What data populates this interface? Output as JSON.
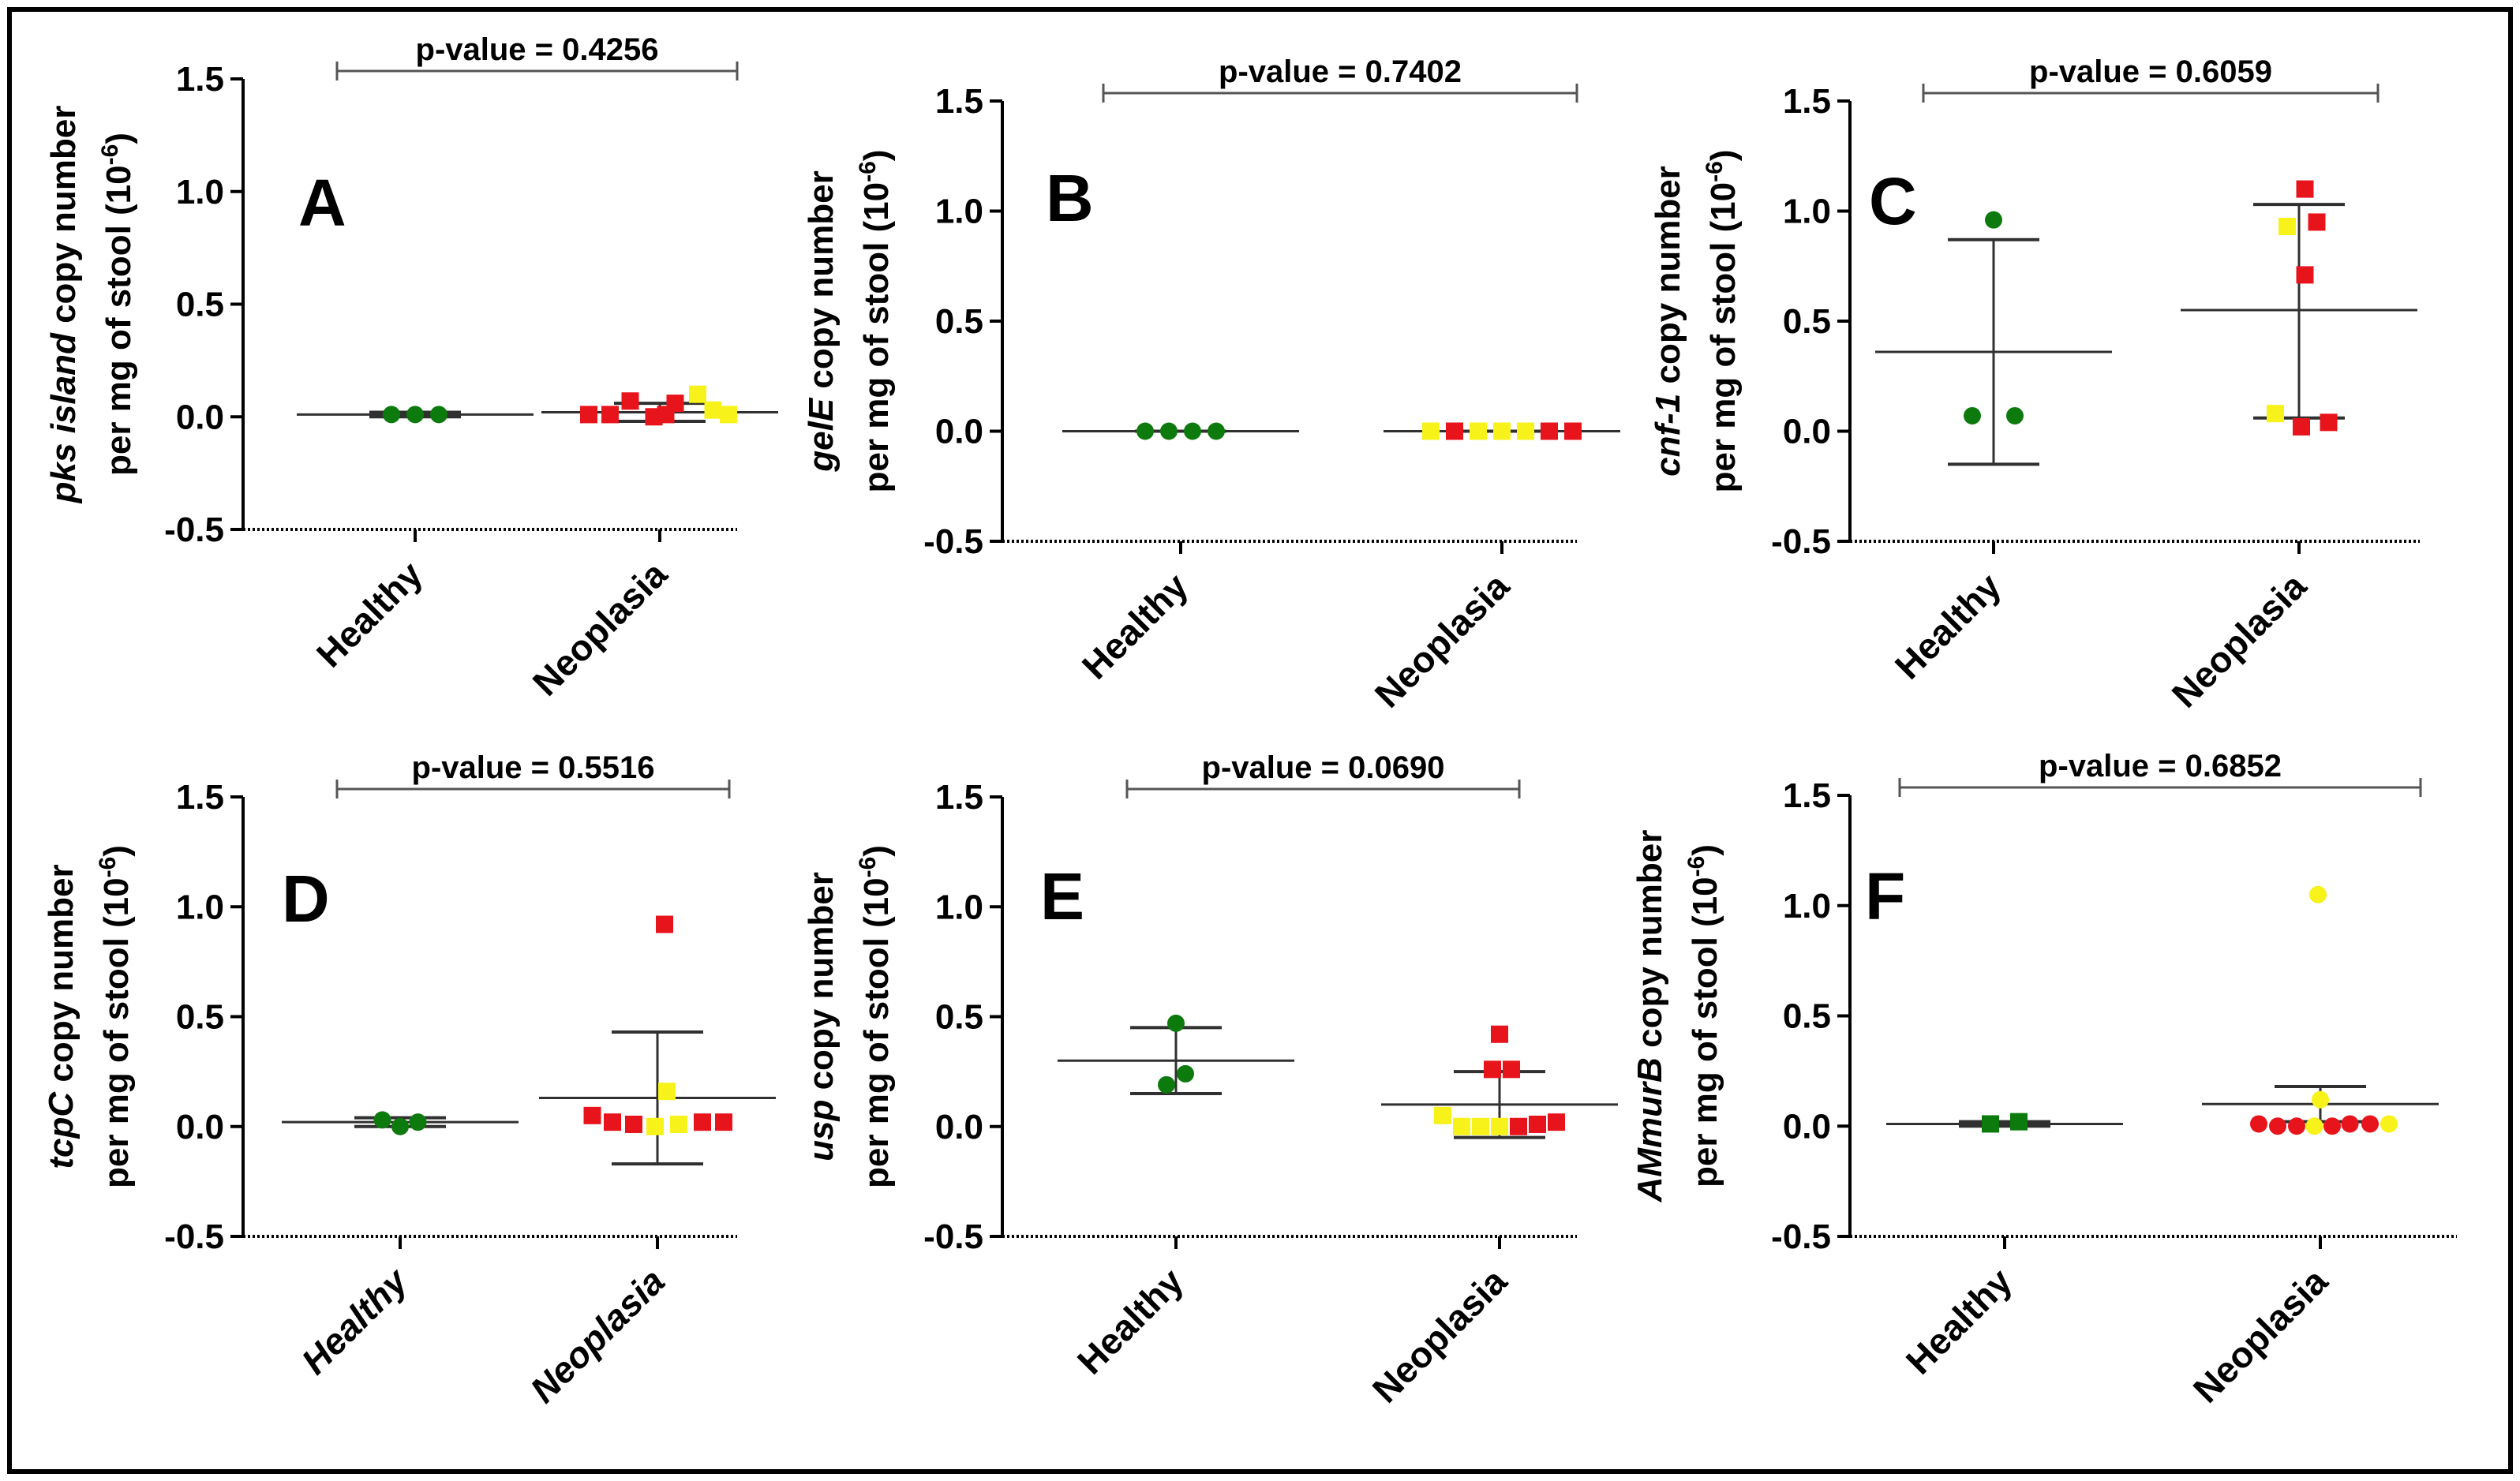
{
  "figure": {
    "border_color": "#000000"
  },
  "colors": {
    "healthy": "#0d7a0d",
    "red": "#e8141c",
    "yellow": "#f7f21a",
    "line": "#303030"
  },
  "chart_data": [
    {
      "type": "scatter",
      "panel_label": "A",
      "ylabel": {
        "line1_italic": "pks island",
        "line1_rest": " copy number",
        "line2": "per mg of stool (10",
        "line2_exp": "-6",
        "line2_end": ")"
      },
      "yticks": [
        "1.5",
        "1.0",
        "0.5",
        "0.0",
        "-0.5"
      ],
      "ylim": [
        -0.5,
        1.5
      ],
      "categories": [
        "Healthy",
        "Neoplasia"
      ],
      "category_italic": false,
      "p_value": "p-value = 0.4256",
      "groups": [
        {
          "name": "Healthy",
          "mean": 0.01,
          "sd_low": 0.0,
          "sd_high": 0.02,
          "points": [
            {
              "dx": -0.2,
              "y": 0.01,
              "color": "healthy",
              "shape": "circle"
            },
            {
              "dx": 0.0,
              "y": 0.01,
              "color": "healthy",
              "shape": "circle"
            },
            {
              "dx": 0.2,
              "y": 0.01,
              "color": "healthy",
              "shape": "circle"
            }
          ]
        },
        {
          "name": "Neoplasia",
          "mean": 0.02,
          "sd_low": -0.02,
          "sd_high": 0.06,
          "points": [
            {
              "dx": -0.6,
              "y": 0.01,
              "color": "red",
              "shape": "square"
            },
            {
              "dx": -0.42,
              "y": 0.01,
              "color": "red",
              "shape": "square"
            },
            {
              "dx": -0.25,
              "y": 0.07,
              "color": "red",
              "shape": "square"
            },
            {
              "dx": -0.05,
              "y": 0.0,
              "color": "red",
              "shape": "square"
            },
            {
              "dx": 0.05,
              "y": 0.01,
              "color": "red",
              "shape": "square"
            },
            {
              "dx": 0.13,
              "y": 0.06,
              "color": "red",
              "shape": "square"
            },
            {
              "dx": 0.32,
              "y": 0.1,
              "color": "yellow",
              "shape": "square"
            },
            {
              "dx": 0.45,
              "y": 0.03,
              "color": "yellow",
              "shape": "square"
            },
            {
              "dx": 0.58,
              "y": 0.01,
              "color": "yellow",
              "shape": "square"
            }
          ]
        }
      ]
    },
    {
      "type": "scatter",
      "panel_label": "B",
      "ylabel": {
        "line1_italic": "gelE",
        "line1_rest": " copy number",
        "line2": "per mg of stool (10",
        "line2_exp": "-6",
        "line2_end": ")"
      },
      "yticks": [
        "1.5",
        "1.0",
        "0.5",
        "0.0",
        "-0.5"
      ],
      "ylim": [
        -0.5,
        1.5
      ],
      "categories": [
        "Healthy",
        "Neoplasia"
      ],
      "category_italic": false,
      "p_value": "p-value = 0.7402",
      "groups": [
        {
          "name": "Healthy",
          "mean": 0.0,
          "sd_low": 0.0,
          "sd_high": 0.0,
          "points": [
            {
              "dx": -0.3,
              "y": 0.0,
              "color": "healthy",
              "shape": "circle"
            },
            {
              "dx": -0.1,
              "y": 0.0,
              "color": "healthy",
              "shape": "circle"
            },
            {
              "dx": 0.1,
              "y": 0.0,
              "color": "healthy",
              "shape": "circle"
            },
            {
              "dx": 0.3,
              "y": 0.0,
              "color": "healthy",
              "shape": "circle"
            }
          ]
        },
        {
          "name": "Neoplasia",
          "mean": 0.0,
          "sd_low": 0.0,
          "sd_high": 0.0,
          "points": [
            {
              "dx": -0.6,
              "y": 0.0,
              "color": "yellow",
              "shape": "square"
            },
            {
              "dx": -0.4,
              "y": 0.0,
              "color": "red",
              "shape": "square"
            },
            {
              "dx": -0.2,
              "y": 0.0,
              "color": "yellow",
              "shape": "square"
            },
            {
              "dx": 0.0,
              "y": 0.0,
              "color": "yellow",
              "shape": "square"
            },
            {
              "dx": 0.2,
              "y": 0.0,
              "color": "yellow",
              "shape": "square"
            },
            {
              "dx": 0.4,
              "y": 0.0,
              "color": "red",
              "shape": "square"
            },
            {
              "dx": 0.6,
              "y": 0.0,
              "color": "red",
              "shape": "square"
            }
          ]
        }
      ]
    },
    {
      "type": "scatter",
      "panel_label": "C",
      "ylabel": {
        "line1_italic": "cnf-1",
        "line1_rest": " copy number",
        "line2": "per mg of stool (10",
        "line2_exp": "-6",
        "line2_end": ")"
      },
      "yticks": [
        "1.5",
        "1.0",
        "0.5",
        "0.0",
        "-0.5"
      ],
      "ylim": [
        -0.5,
        1.5
      ],
      "categories": [
        "Healthy",
        "Neoplasia"
      ],
      "category_italic": false,
      "p_value": "p-value = 0.6059",
      "groups": [
        {
          "name": "Healthy",
          "mean": 0.36,
          "sd_low": -0.15,
          "sd_high": 0.87,
          "points": [
            {
              "dx": 0.0,
              "y": 0.96,
              "color": "healthy",
              "shape": "circle"
            },
            {
              "dx": -0.18,
              "y": 0.07,
              "color": "healthy",
              "shape": "circle"
            },
            {
              "dx": 0.18,
              "y": 0.07,
              "color": "healthy",
              "shape": "circle"
            }
          ]
        },
        {
          "name": "Neoplasia",
          "mean": 0.55,
          "sd_low": 0.06,
          "sd_high": 1.03,
          "points": [
            {
              "dx": 0.05,
              "y": 1.1,
              "color": "red",
              "shape": "square"
            },
            {
              "dx": -0.1,
              "y": 0.93,
              "color": "yellow",
              "shape": "square"
            },
            {
              "dx": 0.15,
              "y": 0.95,
              "color": "red",
              "shape": "square"
            },
            {
              "dx": 0.05,
              "y": 0.71,
              "color": "red",
              "shape": "square"
            },
            {
              "dx": -0.2,
              "y": 0.08,
              "color": "yellow",
              "shape": "square"
            },
            {
              "dx": 0.02,
              "y": 0.02,
              "color": "red",
              "shape": "square"
            },
            {
              "dx": 0.25,
              "y": 0.04,
              "color": "red",
              "shape": "square"
            }
          ]
        }
      ]
    },
    {
      "type": "scatter",
      "panel_label": "D",
      "ylabel": {
        "line1_italic": "tcpC",
        "line1_rest": " copy number",
        "line2": "per mg of stool (10",
        "line2_exp": "-6",
        "line2_end": ")"
      },
      "yticks": [
        "1.5",
        "1.0",
        "0.5",
        "0.0",
        "-0.5"
      ],
      "ylim": [
        -0.5,
        1.5
      ],
      "categories": [
        "Healthy",
        "Neoplasia"
      ],
      "category_italic": true,
      "p_value": "p-value = 0.5516",
      "groups": [
        {
          "name": "Healthy",
          "mean": 0.02,
          "sd_low": 0.0,
          "sd_high": 0.04,
          "points": [
            {
              "dx": -0.15,
              "y": 0.03,
              "color": "healthy",
              "shape": "circle"
            },
            {
              "dx": 0.0,
              "y": 0.0,
              "color": "healthy",
              "shape": "circle"
            },
            {
              "dx": 0.15,
              "y": 0.02,
              "color": "healthy",
              "shape": "circle"
            }
          ]
        },
        {
          "name": "Neoplasia",
          "mean": 0.13,
          "sd_low": -0.17,
          "sd_high": 0.43,
          "points": [
            {
              "dx": 0.06,
              "y": 0.92,
              "color": "red",
              "shape": "square"
            },
            {
              "dx": 0.08,
              "y": 0.16,
              "color": "yellow",
              "shape": "square"
            },
            {
              "dx": -0.55,
              "y": 0.05,
              "color": "red",
              "shape": "square"
            },
            {
              "dx": -0.38,
              "y": 0.02,
              "color": "red",
              "shape": "square"
            },
            {
              "dx": -0.2,
              "y": 0.01,
              "color": "red",
              "shape": "square"
            },
            {
              "dx": -0.02,
              "y": 0.0,
              "color": "yellow",
              "shape": "square"
            },
            {
              "dx": 0.18,
              "y": 0.01,
              "color": "yellow",
              "shape": "square"
            },
            {
              "dx": 0.38,
              "y": 0.02,
              "color": "red",
              "shape": "square"
            },
            {
              "dx": 0.56,
              "y": 0.02,
              "color": "red",
              "shape": "square"
            }
          ]
        }
      ]
    },
    {
      "type": "scatter",
      "panel_label": "E",
      "ylabel": {
        "line1_italic": "usp",
        "line1_rest": " copy number",
        "line2": "per mg of stool (10",
        "line2_exp": "-6",
        "line2_end": ")"
      },
      "yticks": [
        "1.5",
        "1.0",
        "0.5",
        "0.0",
        "-0.5"
      ],
      "ylim": [
        -0.5,
        1.5
      ],
      "categories": [
        "Healthy",
        "Neoplasia"
      ],
      "category_italic": false,
      "p_value": "p-value = 0.0690",
      "groups": [
        {
          "name": "Healthy",
          "mean": 0.3,
          "sd_low": 0.15,
          "sd_high": 0.45,
          "points": [
            {
              "dx": 0.0,
              "y": 0.47,
              "color": "healthy",
              "shape": "circle"
            },
            {
              "dx": 0.08,
              "y": 0.24,
              "color": "healthy",
              "shape": "circle"
            },
            {
              "dx": -0.08,
              "y": 0.19,
              "color": "healthy",
              "shape": "circle"
            }
          ]
        },
        {
          "name": "Neoplasia",
          "mean": 0.1,
          "sd_low": -0.05,
          "sd_high": 0.25,
          "points": [
            {
              "dx": 0.0,
              "y": 0.42,
              "color": "red",
              "shape": "square"
            },
            {
              "dx": -0.06,
              "y": 0.26,
              "color": "red",
              "shape": "square"
            },
            {
              "dx": 0.1,
              "y": 0.26,
              "color": "red",
              "shape": "square"
            },
            {
              "dx": -0.48,
              "y": 0.05,
              "color": "yellow",
              "shape": "square"
            },
            {
              "dx": -0.32,
              "y": 0.0,
              "color": "yellow",
              "shape": "square"
            },
            {
              "dx": -0.16,
              "y": 0.0,
              "color": "yellow",
              "shape": "square"
            },
            {
              "dx": 0.0,
              "y": 0.0,
              "color": "yellow",
              "shape": "square"
            },
            {
              "dx": 0.16,
              "y": 0.0,
              "color": "red",
              "shape": "square"
            },
            {
              "dx": 0.32,
              "y": 0.01,
              "color": "red",
              "shape": "square"
            },
            {
              "dx": 0.48,
              "y": 0.02,
              "color": "red",
              "shape": "square"
            }
          ]
        }
      ]
    },
    {
      "type": "scatter",
      "panel_label": "F",
      "ylabel": {
        "line1_italic": "AMmurB",
        "line1_rest": " copy number",
        "line2": "per mg of stool  (10",
        "line2_exp": "-6",
        "line2_end": ")"
      },
      "yticks": [
        "1.5",
        "1.0",
        "0.5",
        "0.0",
        "-0.5"
      ],
      "ylim": [
        -0.5,
        1.5
      ],
      "categories": [
        "Healthy",
        "Neoplasia"
      ],
      "category_italic": false,
      "p_value": "p-value = 0.6852",
      "groups": [
        {
          "name": "Healthy",
          "mean": 0.01,
          "sd_low": 0.0,
          "sd_high": 0.02,
          "points": [
            {
              "dx": -0.12,
              "y": 0.01,
              "color": "healthy",
              "shape": "square"
            },
            {
              "dx": 0.12,
              "y": 0.02,
              "color": "healthy",
              "shape": "square"
            }
          ]
        },
        {
          "name": "Neoplasia",
          "mean": 0.1,
          "sd_low": 0.02,
          "sd_high": 0.18,
          "points": [
            {
              "dx": -0.02,
              "y": 1.05,
              "color": "yellow",
              "shape": "circle"
            },
            {
              "dx": 0.0,
              "y": 0.12,
              "color": "yellow",
              "shape": "circle"
            },
            {
              "dx": -0.52,
              "y": 0.01,
              "color": "red",
              "shape": "circle"
            },
            {
              "dx": -0.36,
              "y": 0.0,
              "color": "red",
              "shape": "circle"
            },
            {
              "dx": -0.2,
              "y": 0.0,
              "color": "red",
              "shape": "circle"
            },
            {
              "dx": -0.05,
              "y": 0.0,
              "color": "yellow",
              "shape": "circle"
            },
            {
              "dx": 0.1,
              "y": 0.0,
              "color": "red",
              "shape": "circle"
            },
            {
              "dx": 0.25,
              "y": 0.01,
              "color": "red",
              "shape": "circle"
            },
            {
              "dx": 0.42,
              "y": 0.01,
              "color": "red",
              "shape": "circle"
            },
            {
              "dx": 0.58,
              "y": 0.01,
              "color": "yellow",
              "shape": "circle"
            }
          ]
        }
      ]
    }
  ]
}
